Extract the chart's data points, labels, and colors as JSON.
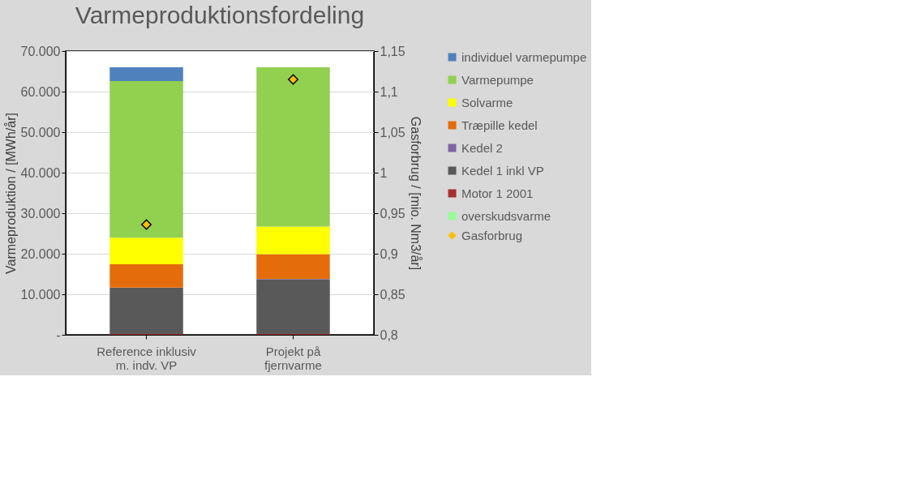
{
  "chart_data": {
    "type": "bar",
    "title": "Varmeproduktionsfordeling",
    "ylabel": "Varmeproduktion / [MWh/år]",
    "y2label": "Gasforbrug / [mio. Nm3/år]",
    "categories": [
      "Reference inklusiv m. indv. VP",
      "Projekt på fjernvarme"
    ],
    "stacked": true,
    "grid": "y",
    "legend": "right",
    "ylim": [
      0,
      70000
    ],
    "yticks": [
      {
        "value": 0,
        "label": "-"
      },
      {
        "value": 10000,
        "label": "10.000"
      },
      {
        "value": 20000,
        "label": "20.000"
      },
      {
        "value": 30000,
        "label": "30.000"
      },
      {
        "value": 40000,
        "label": "40.000"
      },
      {
        "value": 50000,
        "label": "50.000"
      },
      {
        "value": 60000,
        "label": "60.000"
      },
      {
        "value": 70000,
        "label": "70.000"
      }
    ],
    "y2lim": [
      0.8,
      1.15
    ],
    "y2ticks": [
      {
        "value": 0.8,
        "label": "0,8"
      },
      {
        "value": 0.85,
        "label": "0,85"
      },
      {
        "value": 0.9,
        "label": "0,9"
      },
      {
        "value": 0.95,
        "label": "0,95"
      },
      {
        "value": 1,
        "label": "1"
      },
      {
        "value": 1.05,
        "label": "1,05"
      },
      {
        "value": 1.1,
        "label": "1,1"
      },
      {
        "value": 1.15,
        "label": "1,15"
      }
    ],
    "series": [
      {
        "name": "overskudsvarme",
        "color": "#99ff99",
        "values": [
          0,
          0
        ]
      },
      {
        "name": "Motor 1 2001",
        "color": "#a5302d",
        "values": [
          200,
          200
        ]
      },
      {
        "name": "Kedel 1 inkl VP",
        "color": "#595959",
        "values": [
          11450,
          13500
        ]
      },
      {
        "name": "Kedel 2",
        "color": "#8064a2",
        "values": [
          0,
          100
        ]
      },
      {
        "name": "Træpille kedel",
        "color": "#e46c0a",
        "values": [
          5750,
          6100
        ]
      },
      {
        "name": "Solvarme",
        "color": "#ffff00",
        "values": [
          6550,
          6800
        ]
      },
      {
        "name": "Varmepumpe",
        "color": "#92d050",
        "values": [
          38650,
          39300
        ]
      },
      {
        "name": "individuel varmepumpe",
        "color": "#4f81bd",
        "values": [
          3400,
          0
        ]
      },
      {
        "name": "Gasforbrug",
        "type": "scatter",
        "axis": "y2",
        "marker": "diamond",
        "color": "#ffc000",
        "values": [
          0.936,
          1.115
        ]
      }
    ]
  }
}
